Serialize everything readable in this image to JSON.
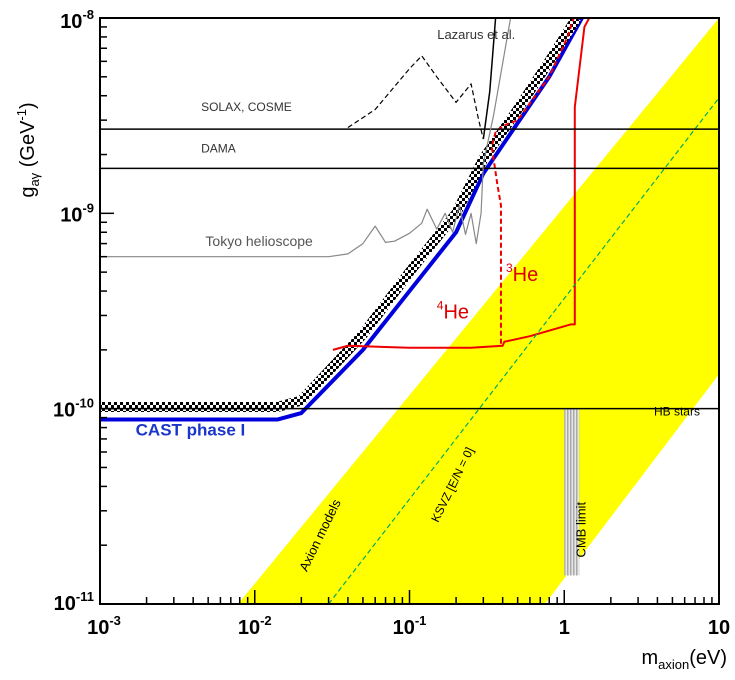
{
  "chart_data": {
    "type": "line",
    "x_scale": "log",
    "y_scale": "log",
    "xlim": [
      0.001,
      10
    ],
    "ylim": [
      1e-11,
      1e-08
    ],
    "grid": false,
    "x_ticks": [
      {
        "value": 0.001,
        "base": "10",
        "exp": "-3"
      },
      {
        "value": 0.01,
        "base": "10",
        "exp": "-2"
      },
      {
        "value": 0.1,
        "base": "10",
        "exp": "-1"
      },
      {
        "value": 1,
        "base": "1",
        "exp": ""
      },
      {
        "value": 10,
        "base": "10",
        "exp": ""
      }
    ],
    "y_ticks": [
      {
        "value": 1e-08,
        "base": "10",
        "exp": "-8"
      },
      {
        "value": 1e-09,
        "base": "10",
        "exp": "-9"
      },
      {
        "value": 1e-10,
        "base": "10",
        "exp": "-10"
      },
      {
        "value": 1e-11,
        "base": "10",
        "exp": "-11"
      }
    ],
    "xlabel": {
      "main": "m",
      "sub": "axion",
      "unit": "(eV)"
    },
    "ylabel": {
      "main": "g",
      "sub": "aγ",
      "unit": "(GeV",
      "unit_sup": "-1",
      "unit_end": ")"
    },
    "bands": [
      {
        "name": "Axion models",
        "color": "#ffff00",
        "polygon": [
          [
            0.0078,
            1e-11
          ],
          [
            10,
            1e-08
          ],
          [
            10,
            1.5e-10
          ],
          [
            0.75,
            1e-11
          ]
        ]
      }
    ],
    "shaded_regions": [
      {
        "name": "CMB limit",
        "color": "#b4b4b4",
        "x_range": [
          1.0,
          1.25
        ],
        "y_range": [
          1.4e-11,
          1e-10
        ]
      }
    ],
    "series": [
      {
        "name": "CAST phase I",
        "color": "#0000dd",
        "width": 4,
        "style": "solid",
        "points": [
          [
            0.001,
            8.8e-11
          ],
          [
            0.014,
            8.8e-11
          ],
          [
            0.02,
            9.5e-11
          ],
          [
            0.05,
            2e-10
          ],
          [
            0.1,
            4e-10
          ],
          [
            0.2,
            8e-10
          ],
          [
            0.3,
            1.6e-09
          ],
          [
            0.5,
            2.9e-09
          ],
          [
            0.8,
            5e-09
          ],
          [
            1.3,
            1e-08
          ]
        ]
      },
      {
        "name": "Previous CAST limit",
        "color": "#000000",
        "width": 10,
        "style": "checker",
        "points": [
          [
            0.001,
            1.02e-10
          ],
          [
            0.014,
            1.02e-10
          ],
          [
            0.02,
            1.1e-10
          ],
          [
            0.05,
            2.4e-10
          ],
          [
            0.1,
            5e-10
          ],
          [
            0.2,
            1e-09
          ],
          [
            0.3,
            1.9e-09
          ],
          [
            0.5,
            3.4e-09
          ],
          [
            0.8,
            6e-09
          ],
          [
            1.2,
            1e-08
          ]
        ]
      },
      {
        "name": "4He",
        "color": "#ee0000",
        "width": 2,
        "style": "solid",
        "points": [
          [
            0.032,
            2e-10
          ],
          [
            0.04,
            2.1e-10
          ],
          [
            0.1,
            2.05e-10
          ],
          [
            0.25,
            2.05e-10
          ],
          [
            0.4,
            2.1e-10
          ],
          [
            0.41,
            2.2e-10
          ],
          [
            0.6,
            2.35e-10
          ],
          [
            1.1,
            2.7e-10
          ],
          [
            1.17,
            2.7e-10
          ],
          [
            1.17,
            3.5e-09
          ],
          [
            1.35,
            9e-09
          ],
          [
            1.45,
            1e-08
          ]
        ]
      },
      {
        "name": "3He",
        "color": "#ee0000",
        "width": 2,
        "style": "dashed",
        "points": [
          [
            0.39,
            2.15e-10
          ],
          [
            0.39,
            1.1e-09
          ],
          [
            0.37,
            1.4e-09
          ],
          [
            0.34,
            2.2e-09
          ],
          [
            0.36,
            2.6e-09
          ],
          [
            0.4,
            2.8e-09
          ],
          [
            0.5,
            3e-09
          ],
          [
            0.8,
            5e-09
          ],
          [
            1.05,
            8e-09
          ],
          [
            1.15,
            1e-08
          ]
        ]
      },
      {
        "name": "KSVZ",
        "color": "#00aa66",
        "width": 1.2,
        "style": "dashed",
        "points": [
          [
            0.03,
            1e-11
          ],
          [
            10,
            3.9e-09
          ]
        ]
      },
      {
        "name": "SOLAX, COSME",
        "color": "#000000",
        "width": 1.5,
        "style": "solid",
        "points": [
          [
            0.001,
            2.7e-09
          ],
          [
            10,
            2.7e-09
          ]
        ]
      },
      {
        "name": "DAMA",
        "color": "#000000",
        "width": 1.5,
        "style": "solid",
        "points": [
          [
            0.001,
            1.7e-09
          ],
          [
            10,
            1.7e-09
          ]
        ]
      },
      {
        "name": "HB stars",
        "color": "#000000",
        "width": 1.5,
        "style": "solid",
        "points": [
          [
            0.001,
            1e-10
          ],
          [
            10,
            1e-10
          ]
        ]
      },
      {
        "name": "Lazarus et al.",
        "color": "#000000",
        "width": 1.2,
        "style": "dashed",
        "points": [
          [
            0.04,
            2.75e-09
          ],
          [
            0.06,
            3.4e-09
          ],
          [
            0.1,
            5.5e-09
          ],
          [
            0.12,
            6.4e-09
          ],
          [
            0.15,
            5e-09
          ],
          [
            0.2,
            3.7e-09
          ],
          [
            0.25,
            4.6e-09
          ],
          [
            0.28,
            3e-09
          ],
          [
            0.3,
            2.4e-09
          ]
        ]
      },
      {
        "name": "Lazarus et al. (upper)",
        "color": "#000000",
        "width": 1.5,
        "style": "solid",
        "points": [
          [
            0.3,
            2.4e-09
          ],
          [
            0.33,
            4.2e-09
          ],
          [
            0.36,
            1e-08
          ]
        ]
      },
      {
        "name": "Tokyo helioscope",
        "color": "#888888",
        "width": 1.2,
        "style": "solid",
        "points": [
          [
            0.001,
            6e-10
          ],
          [
            0.03,
            6e-10
          ],
          [
            0.04,
            6.2e-10
          ],
          [
            0.05,
            7e-10
          ],
          [
            0.06,
            8.6e-10
          ],
          [
            0.07,
            7.1e-10
          ],
          [
            0.08,
            7.2e-10
          ],
          [
            0.1,
            7.9e-10
          ],
          [
            0.12,
            8.9e-10
          ],
          [
            0.13,
            1.05e-09
          ],
          [
            0.15,
            8.3e-10
          ],
          [
            0.17,
            1e-09
          ],
          [
            0.19,
            8e-10
          ],
          [
            0.21,
            1.1e-09
          ],
          [
            0.23,
            7.8e-10
          ],
          [
            0.25,
            1e-09
          ],
          [
            0.27,
            7e-10
          ],
          [
            0.29,
            1e-09
          ],
          [
            0.3,
            1.8e-09
          ],
          [
            0.35,
            3.2e-09
          ],
          [
            0.45,
            1e-08
          ]
        ]
      }
    ],
    "labels": [
      {
        "text": "Lazarus et al.",
        "x": 0.27,
        "y": 7.8e-09,
        "color": "#333333",
        "size": 13,
        "anchor": "middle",
        "rotate": 0
      },
      {
        "text": "SOLAX, COSME",
        "x": 0.0045,
        "y": 3.35e-09,
        "color": "#333333",
        "size": 12,
        "anchor": "start",
        "rotate": 0
      },
      {
        "text": "DAMA",
        "x": 0.0045,
        "y": 2.05e-09,
        "color": "#333333",
        "size": 12,
        "anchor": "start",
        "rotate": 0
      },
      {
        "text": "Tokyo helioscope",
        "x": 0.0048,
        "y": 6.8e-10,
        "color": "#555555",
        "size": 14,
        "anchor": "start",
        "rotate": 0
      },
      {
        "text": "CAST phase I",
        "x": 0.0017,
        "y": 7.3e-11,
        "color": "#1a35cc",
        "size": 17,
        "anchor": "start",
        "rotate": 0,
        "bold": true
      },
      {
        "text": "HB stars",
        "x": 3.8,
        "y": 9.2e-11,
        "color": "#000000",
        "size": 12,
        "anchor": "start",
        "rotate": 0
      },
      {
        "text": "Axion models",
        "x": 0.028,
        "y": 2.2e-11,
        "color": "#000000",
        "size": 13,
        "anchor": "middle",
        "rotate": -64
      },
      {
        "text": "KSVZ [E/N = 0]",
        "x": 0.2,
        "y": 4e-11,
        "color": "#000000",
        "size": 12,
        "anchor": "middle",
        "rotate": -64
      },
      {
        "text": "CMB limit",
        "x": 1.37,
        "y": 2.4e-11,
        "color": "#000000",
        "size": 13,
        "anchor": "middle",
        "rotate": -90
      }
    ],
    "isotope_labels": [
      {
        "num": "4",
        "sym": "He",
        "x": 0.15,
        "y": 2.9e-10,
        "color": "#dd0000"
      },
      {
        "num": "3",
        "sym": "He",
        "x": 0.42,
        "y": 4.5e-10,
        "color": "#dd0000"
      }
    ]
  }
}
